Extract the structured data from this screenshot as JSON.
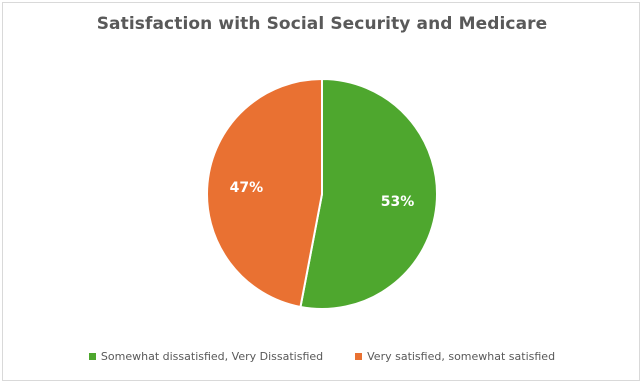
{
  "chart_data": {
    "type": "pie",
    "title": "Satisfaction with Social Security and Medicare",
    "slices": [
      {
        "label": "Somewhat dissatisfied, Very Dissatisfied",
        "value": 53,
        "data_label": "53%",
        "color": "#4ea72e"
      },
      {
        "label": "Very satisfied, somewhat satisfied",
        "value": 47,
        "data_label": "47%",
        "color": "#e97132"
      }
    ],
    "start_angle_deg": 0,
    "direction": "clockwise",
    "legend_position": "bottom"
  }
}
